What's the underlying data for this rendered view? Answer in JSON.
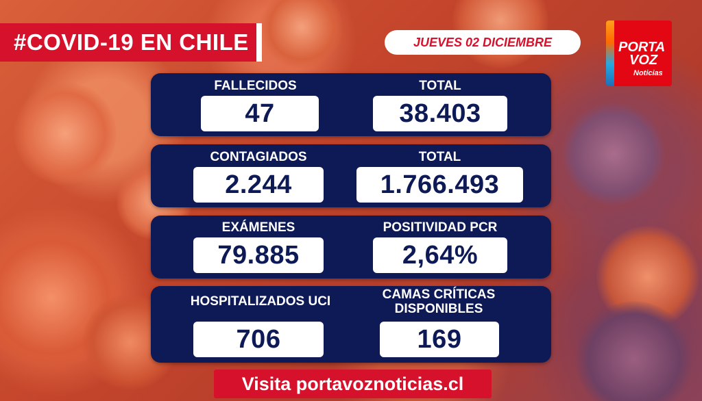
{
  "header": {
    "title": "#COVID-19 EN CHILE",
    "date": "JUEVES 02 DICIEMBRE"
  },
  "logo": {
    "line1": "PORTA",
    "line2": "VOZ",
    "sub": "Noticias"
  },
  "stats": {
    "fallecidos": {
      "label": "FALLECIDOS",
      "value": "47",
      "total_label": "TOTAL",
      "total_value": "38.403"
    },
    "contagiados": {
      "label": "CONTAGIADOS",
      "value": "2.244",
      "total_label": "TOTAL",
      "total_value": "1.766.493"
    },
    "examenes": {
      "label": "EXÁMENES",
      "value": "79.885",
      "positividad_label": "POSITIVIDAD PCR",
      "positividad_value": "2,64%"
    },
    "hospitalizados": {
      "label": "HOSPITALIZADOS UCI",
      "value": "706",
      "camas_label_1": "CAMAS CRÍTICAS",
      "camas_label_2": "DISPONIBLES",
      "camas_value": "169"
    }
  },
  "footer": {
    "text": "Visita portavoznoticias.cl"
  },
  "colors": {
    "brand_red": "#d6112c",
    "panel_navy": "#0e1a55"
  }
}
